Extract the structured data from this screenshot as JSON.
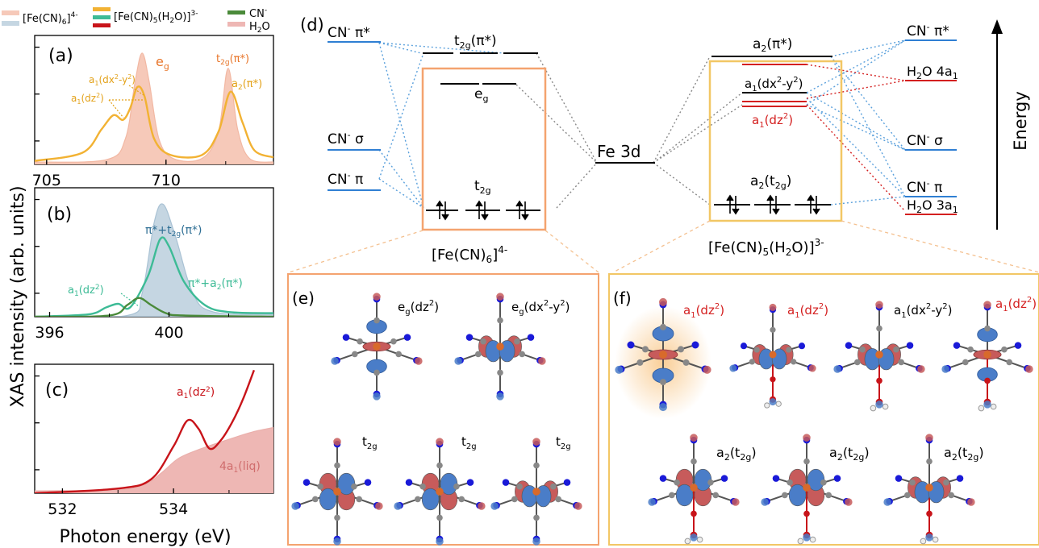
{
  "legend": {
    "fecn6": "[Fe(CN)6]4-",
    "fecn5h2o": "[Fe(CN)5(H2O)]3-",
    "cn": "CN-",
    "h2o": "H2O"
  },
  "colors": {
    "fecn6_fill": "#f6c9b9",
    "fecn6_fill_b": "#c5d6e2",
    "fecn5_a": "#f2b233",
    "fecn5_b": "#3dbb96",
    "fecn5_c": "#c8141a",
    "cn": "#4a8a3a",
    "h2o_fill": "#eeb7b4",
    "blue_level": "#2f7fd3",
    "red_level": "#d42020",
    "orange_box": "#f4a36f",
    "yellow_box": "#f2c765",
    "orb_red": "#c75b5b",
    "orb_blue": "#4a7dc8"
  },
  "y_axis_label": "XAS intensity (arb. units)",
  "x_axis_label": "Photon energy (eV)",
  "panel_a": {
    "tag": "(a)",
    "eg": "eg",
    "t2g": "t2g(π*)",
    "a2": "a2(π*)",
    "a1_dx2y2": "a1(dx²-y²)",
    "a1_dz2": "a1(dz²)"
  },
  "panel_b": {
    "tag": "(b)",
    "l1": "π*+t2g(π*)",
    "l2": "π*+a2(π*)",
    "l3": "a1(dz²)"
  },
  "panel_c": {
    "tag": "(c)",
    "l1": "a1(dz²)",
    "l2": "4a1(liq)"
  },
  "panel_d": {
    "tag": "(d)",
    "left_levels": [
      "CN- π*",
      "CN- σ",
      "CN- π"
    ],
    "right_levels": [
      "CN- π*",
      "H2O 4a1",
      "CN- σ",
      "CN- π",
      "H2O 3a1"
    ],
    "fe3d": "Fe 3d",
    "t2g_pi": "t2g(π*)",
    "eg": "eg",
    "t2g": "t2g",
    "a2_pi": "a2(π*)",
    "a1_dx2y2": "a1(dx²-y²)",
    "a1_dz2": "a1(dz²)",
    "a2_t2g": "a2(t2g)",
    "complex1": "[Fe(CN)6]4-",
    "complex2": "[Fe(CN)5(H2O)]3-",
    "energy": "Energy"
  },
  "panel_e": {
    "tag": "(e)",
    "labels": [
      "eg(dz²)",
      "eg(dx²-y²)",
      "t2g",
      "t2g",
      "t2g"
    ]
  },
  "panel_f": {
    "tag": "(f)",
    "labels": [
      "a1(dz²)",
      "a1(dz²)",
      "a1(dx²-y²)",
      "a1(dz²)",
      "a2(t2g)",
      "a2(t2g)",
      "a2(t2g)"
    ]
  },
  "chart_data": [
    {
      "type": "line",
      "panel": "(a)",
      "xlim": [
        704.5,
        714.5
      ],
      "ylim": [
        0,
        1.1
      ],
      "x_ticks": [
        705,
        710
      ],
      "series": [
        {
          "name": "[Fe(CN)6]4-",
          "style": "filled",
          "x": [
            704.5,
            707.5,
            708.3,
            708.7,
            709.0,
            709.3,
            709.7,
            710.3,
            711.5,
            712.2,
            712.6,
            713.0,
            713.5,
            714.5
          ],
          "y": [
            0.02,
            0.04,
            0.22,
            0.7,
            0.95,
            0.7,
            0.22,
            0.05,
            0.05,
            0.28,
            0.82,
            0.3,
            0.05,
            0.02
          ]
        },
        {
          "name": "[Fe(CN)5(H2O)]3-",
          "style": "line",
          "x": [
            704.5,
            706.5,
            707.3,
            707.8,
            708.2,
            708.5,
            708.8,
            709.1,
            709.5,
            710.2,
            711.5,
            712.2,
            712.7,
            713.2,
            713.7,
            714.5
          ],
          "y": [
            0.03,
            0.1,
            0.3,
            0.42,
            0.38,
            0.48,
            0.66,
            0.58,
            0.22,
            0.08,
            0.08,
            0.28,
            0.62,
            0.36,
            0.12,
            0.06
          ]
        }
      ]
    },
    {
      "type": "line",
      "panel": "(b)",
      "xlim": [
        395.5,
        403.5
      ],
      "ylim": [
        0,
        1.1
      ],
      "x_ticks": [
        396,
        400
      ],
      "series": [
        {
          "name": "[Fe(CN)6]4-",
          "style": "filled",
          "x": [
            395.5,
            398.6,
            399.1,
            399.5,
            399.8,
            400.2,
            400.8,
            401.5,
            403.5
          ],
          "y": [
            0.0,
            0.01,
            0.2,
            0.8,
            0.96,
            0.7,
            0.2,
            0.04,
            0.02
          ]
        },
        {
          "name": "[Fe(CN)5(H2O)]3-",
          "style": "line",
          "x": [
            395.5,
            397.3,
            397.9,
            398.3,
            398.7,
            399.3,
            399.7,
            400.0,
            400.5,
            401.2,
            402.0,
            403.5
          ],
          "y": [
            0.0,
            0.02,
            0.08,
            0.11,
            0.08,
            0.35,
            0.66,
            0.6,
            0.3,
            0.1,
            0.04,
            0.03
          ]
        },
        {
          "name": "CN-",
          "style": "line",
          "x": [
            395.5,
            398.0,
            398.6,
            399.0,
            399.4,
            399.9,
            400.5,
            403.5
          ],
          "y": [
            0.0,
            0.01,
            0.1,
            0.16,
            0.1,
            0.03,
            0.01,
            0.0
          ]
        }
      ]
    },
    {
      "type": "line",
      "panel": "(c)",
      "xlim": [
        531.5,
        535.8
      ],
      "ylim": [
        0,
        1.1
      ],
      "x_ticks": [
        532,
        534
      ],
      "series": [
        {
          "name": "H2O",
          "style": "filled",
          "x": [
            531.5,
            533.0,
            533.5,
            533.8,
            534.1,
            534.5,
            535.0,
            535.4,
            535.8
          ],
          "y": [
            0.02,
            0.03,
            0.08,
            0.18,
            0.3,
            0.38,
            0.46,
            0.52,
            0.56
          ]
        },
        {
          "name": "[Fe(CN)5(H2O)]3-",
          "style": "line",
          "x": [
            531.5,
            533.0,
            533.6,
            534.0,
            534.25,
            534.45,
            534.65,
            534.85,
            535.05,
            535.25,
            535.45
          ],
          "y": [
            0.0,
            0.04,
            0.12,
            0.4,
            0.62,
            0.55,
            0.38,
            0.45,
            0.6,
            0.8,
            1.05
          ]
        }
      ]
    }
  ]
}
